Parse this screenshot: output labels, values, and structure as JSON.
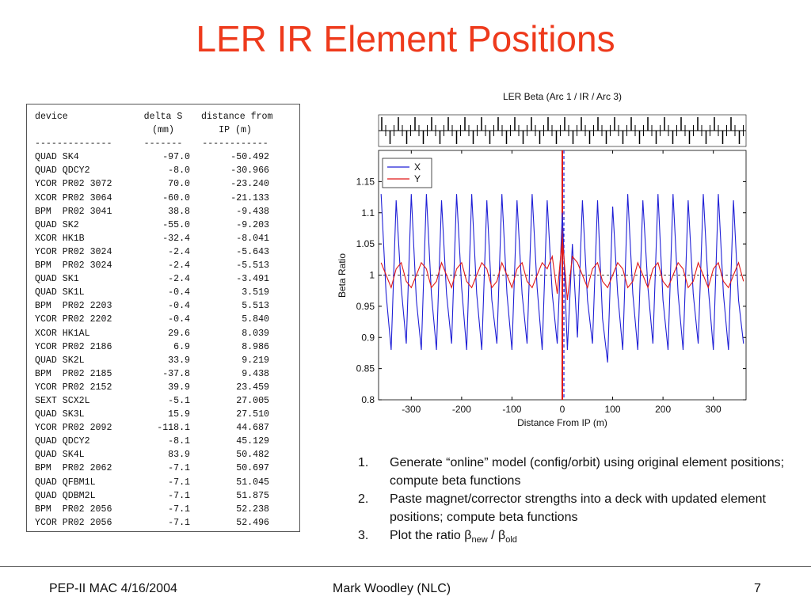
{
  "header": {
    "title": "LER IR Element Positions"
  },
  "table": {
    "header": [
      [
        "device",
        "delta S",
        "distance from"
      ],
      [
        "",
        "(mm)",
        "IP (m)"
      ],
      [
        "--------------",
        "-------",
        "------------"
      ]
    ],
    "rows": [
      [
        "QUAD SK4",
        "-97.0",
        "-50.492"
      ],
      [
        "QUAD QDCY2",
        "-8.0",
        "-30.966"
      ],
      [
        "YCOR PR02 3072",
        "70.0",
        "-23.240"
      ],
      [
        "XCOR PR02 3064",
        "-60.0",
        "-21.133"
      ],
      [
        "BPM  PR02 3041",
        "38.8",
        "-9.438"
      ],
      [
        "QUAD SK2",
        "-55.0",
        "-9.203"
      ],
      [
        "XCOR HK1B",
        "-32.4",
        "-8.041"
      ],
      [
        "YCOR PR02 3024",
        "-2.4",
        "-5.643"
      ],
      [
        "BPM  PR02 3024",
        "-2.4",
        "-5.513"
      ],
      [
        "QUAD SK1",
        "-2.4",
        "-3.491"
      ],
      [
        "QUAD SK1L",
        "-0.4",
        "3.519"
      ],
      [
        "BPM  PR02 2203",
        "-0.4",
        "5.513"
      ],
      [
        "YCOR PR02 2202",
        "-0.4",
        "5.840"
      ],
      [
        "XCOR HK1AL",
        "29.6",
        "8.039"
      ],
      [
        "YCOR PR02 2186",
        "6.9",
        "8.986"
      ],
      [
        "QUAD SK2L",
        "33.9",
        "9.219"
      ],
      [
        "BPM  PR02 2185",
        "-37.8",
        "9.438"
      ],
      [
        "YCOR PR02 2152",
        "39.9",
        "23.459"
      ],
      [
        "SEXT SCX2L",
        "-5.1",
        "27.005"
      ],
      [
        "QUAD SK3L",
        "15.9",
        "27.510"
      ],
      [
        "YCOR PR02 2092",
        "-118.1",
        "44.687"
      ],
      [
        "QUAD QDCY2",
        "-8.1",
        "45.129"
      ],
      [
        "QUAD SK4L",
        "83.9",
        "50.482"
      ],
      [
        "BPM  PR02 2062",
        "-7.1",
        "50.697"
      ],
      [
        "QUAD QFBM1L",
        "-7.1",
        "51.045"
      ],
      [
        "QUAD QDBM2L",
        "-7.1",
        "51.875"
      ],
      [
        "BPM  PR02 2056",
        "-7.1",
        "52.238"
      ],
      [
        "YCOR PR02 2056",
        "-7.1",
        "52.496"
      ]
    ]
  },
  "chart_data": {
    "type": "line",
    "title": "LER Beta (Arc 1 / IR / Arc 3)",
    "x_label": "Distance From IP (m)",
    "y_label": "Beta Ratio",
    "x": [
      -360,
      -350,
      -340,
      -330,
      -320,
      -310,
      -300,
      -290,
      -280,
      -270,
      -260,
      -250,
      -240,
      -230,
      -220,
      -210,
      -200,
      -190,
      -180,
      -170,
      -160,
      -150,
      -140,
      -130,
      -120,
      -110,
      -100,
      -90,
      -80,
      -70,
      -60,
      -50,
      -40,
      -30,
      -20,
      -10,
      0,
      10,
      20,
      30,
      40,
      50,
      60,
      70,
      80,
      90,
      100,
      110,
      120,
      130,
      140,
      150,
      160,
      170,
      180,
      190,
      200,
      210,
      220,
      230,
      240,
      250,
      260,
      270,
      280,
      290,
      300,
      310,
      320,
      330,
      340,
      350,
      360
    ],
    "series": [
      {
        "name": "X",
        "color": "#1f1fd6",
        "values": [
          1.13,
          0.97,
          0.88,
          1.12,
          0.98,
          0.89,
          1.13,
          0.96,
          0.88,
          1.13,
          0.97,
          0.88,
          1.12,
          0.97,
          0.89,
          1.13,
          0.98,
          0.88,
          1.13,
          0.97,
          0.88,
          1.12,
          0.96,
          0.89,
          1.13,
          0.97,
          0.88,
          1.12,
          0.97,
          0.89,
          1.13,
          0.98,
          0.88,
          1.12,
          0.97,
          0.89,
          1.1,
          0.88,
          1.05,
          0.9,
          1.12,
          0.96,
          0.89,
          1.12,
          0.93,
          0.86,
          1.11,
          0.97,
          0.88,
          1.13,
          0.97,
          0.88,
          1.12,
          0.98,
          0.89,
          1.13,
          0.96,
          0.88,
          1.13,
          0.97,
          0.88,
          1.12,
          0.97,
          0.89,
          1.13,
          0.98,
          0.88,
          1.13,
          0.97,
          0.88,
          1.12,
          0.96,
          0.89
        ]
      },
      {
        "name": "Y",
        "color": "#e01818",
        "values": [
          1.02,
          1.0,
          0.98,
          1.01,
          1.02,
          0.99,
          0.98,
          1.0,
          1.02,
          1.01,
          0.98,
          0.99,
          1.02,
          1.0,
          0.98,
          1.01,
          1.02,
          0.99,
          0.98,
          1.0,
          1.02,
          1.01,
          0.98,
          0.99,
          1.02,
          1.0,
          0.98,
          1.01,
          1.02,
          0.99,
          0.98,
          1.0,
          1.02,
          1.01,
          1.03,
          0.97,
          1.06,
          0.96,
          1.03,
          1.02,
          1.0,
          0.98,
          1.01,
          1.02,
          0.99,
          0.98,
          1.0,
          1.02,
          1.01,
          0.98,
          0.99,
          1.02,
          1.0,
          0.98,
          1.01,
          1.02,
          0.99,
          0.98,
          1.0,
          1.02,
          1.01,
          0.98,
          0.99,
          1.02,
          1.0,
          0.98,
          1.01,
          1.02,
          0.99,
          0.98,
          1.0,
          1.02,
          0.99
        ]
      }
    ],
    "xlim": [
      -365,
      365
    ],
    "ylim": [
      0.8,
      1.2
    ],
    "xticks": [
      -300,
      -200,
      -100,
      0,
      100,
      200,
      300
    ],
    "yticks": [
      0.8,
      0.85,
      0.9,
      0.95,
      1,
      1.05,
      1.1,
      1.15
    ],
    "legend": "upper left"
  },
  "steps": [
    {
      "number": "1.",
      "text": "Generate “online” model (config/orbit) using original element positions; compute beta functions"
    },
    {
      "number": "2.",
      "text": "Paste magnet/corrector strengths into a deck with updated element positions; compute beta functions"
    },
    {
      "number": "3.",
      "text": "Plot the ratio β",
      "sub1": "new",
      "mid": " / β",
      "sub2": "old"
    }
  ],
  "footer": {
    "left": "PEP-II MAC 4/16/2004",
    "center": "Mark Woodley (NLC)",
    "page": "7"
  }
}
